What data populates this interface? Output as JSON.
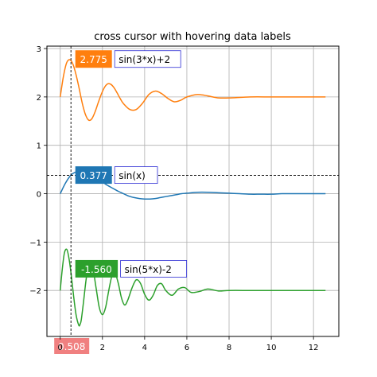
{
  "chart_data": {
    "type": "line",
    "title": "cross cursor with hovering data labels",
    "xlabel": "",
    "ylabel": "",
    "xlim": [
      -0.63,
      13.2
    ],
    "ylim": [
      -2.95,
      3.05
    ],
    "grid": true,
    "xticks": [
      0,
      2,
      4,
      6,
      8,
      10,
      12
    ],
    "yticks": [
      -2,
      -1,
      0,
      1,
      2,
      3
    ],
    "series": [
      {
        "name": "sin(x)",
        "formula": "damped",
        "freq": 1,
        "offset": 0,
        "amp": 1,
        "decay": 0.0,
        "color": "#1f77b4",
        "x": [
          0,
          0.25,
          0.5,
          0.75,
          1.0,
          1.25,
          1.5,
          1.75,
          2.0,
          2.25,
          2.5,
          2.75,
          3.0,
          3.25,
          3.5,
          3.75,
          4.0,
          4.25,
          4.5,
          4.75,
          5.0,
          5.25,
          5.5,
          5.75,
          6.0,
          6.5,
          7.0,
          7.5,
          8.0,
          8.5,
          9.0,
          9.5,
          10.0,
          10.5,
          11.0,
          11.5,
          12.0,
          12.57
        ],
        "y": [
          0,
          0.22,
          0.38,
          0.45,
          0.45,
          0.42,
          0.38,
          0.31,
          0.24,
          0.17,
          0.11,
          0.05,
          0.0,
          -0.05,
          -0.08,
          -0.1,
          -0.11,
          -0.11,
          -0.1,
          -0.08,
          -0.06,
          -0.04,
          -0.02,
          0.0,
          0.01,
          0.03,
          0.03,
          0.02,
          0.01,
          0.0,
          -0.01,
          -0.01,
          -0.01,
          0.0,
          0.0,
          0.0,
          0.0,
          0.0
        ]
      },
      {
        "name": "sin(3*x)+2",
        "color": "#ff7f0e",
        "x": [
          0,
          0.15,
          0.3,
          0.45,
          0.6,
          0.75,
          0.9,
          1.05,
          1.2,
          1.35,
          1.5,
          1.65,
          1.8,
          1.95,
          2.1,
          2.25,
          2.4,
          2.55,
          2.7,
          2.85,
          3.0,
          3.3,
          3.6,
          3.9,
          4.2,
          4.5,
          4.8,
          5.1,
          5.4,
          5.7,
          6.0,
          6.5,
          7.0,
          7.5,
          8.0,
          9.0,
          10.0,
          11.0,
          12.57
        ],
        "y": [
          2.0,
          2.42,
          2.7,
          2.77,
          2.68,
          2.46,
          2.17,
          1.86,
          1.63,
          1.52,
          1.55,
          1.69,
          1.88,
          2.06,
          2.2,
          2.27,
          2.26,
          2.19,
          2.08,
          1.96,
          1.86,
          1.74,
          1.74,
          1.87,
          2.05,
          2.12,
          2.07,
          1.97,
          1.9,
          1.93,
          2.0,
          2.05,
          2.02,
          1.98,
          1.98,
          2.0,
          2.0,
          2.0,
          2.0
        ]
      },
      {
        "name": "sin(5*x)-2",
        "color": "#2ca02c",
        "x": [
          0,
          0.1,
          0.2,
          0.31,
          0.4,
          0.5,
          0.63,
          0.75,
          0.88,
          0.94,
          1.0,
          1.1,
          1.25,
          1.4,
          1.55,
          1.7,
          1.85,
          2.0,
          2.15,
          2.3,
          2.45,
          2.6,
          2.75,
          2.9,
          3.05,
          3.2,
          3.4,
          3.6,
          3.8,
          4.0,
          4.2,
          4.4,
          4.6,
          4.8,
          5.0,
          5.3,
          5.6,
          5.9,
          6.2,
          6.6,
          7.0,
          7.5,
          8.0,
          9.0,
          10.0,
          11.0,
          12.57
        ],
        "y": [
          -2.0,
          -1.55,
          -1.22,
          -1.15,
          -1.3,
          -1.6,
          -2.1,
          -2.5,
          -2.72,
          -2.7,
          -2.6,
          -2.25,
          -1.7,
          -1.42,
          -1.55,
          -1.95,
          -2.35,
          -2.5,
          -2.35,
          -2.0,
          -1.7,
          -1.65,
          -1.85,
          -2.15,
          -2.3,
          -2.2,
          -1.95,
          -1.78,
          -1.85,
          -2.08,
          -2.2,
          -2.1,
          -1.9,
          -1.86,
          -2.0,
          -2.1,
          -1.97,
          -1.94,
          -2.04,
          -2.02,
          -1.97,
          -2.01,
          -2.0,
          -2.0,
          -2.0,
          -2.0,
          -2.0
        ]
      }
    ],
    "cursor": {
      "x": 0.508,
      "y": 0.377,
      "x_label": "0.508",
      "x_label_color": "#f08080"
    },
    "annotations": [
      {
        "series_index": 1,
        "x": 0.508,
        "y": 2.775,
        "value_label": "2.775",
        "name_label": "sin(3*x)+2",
        "color": "#ff7f0e"
      },
      {
        "series_index": 0,
        "x": 0.508,
        "y": 0.377,
        "value_label": "0.377",
        "name_label": "sin(x)",
        "color": "#1f77b4"
      },
      {
        "series_index": 2,
        "x": 0.508,
        "y": -1.56,
        "value_label": "-1.560",
        "name_label": "sin(5*x)-2",
        "color": "#2ca02c"
      }
    ]
  }
}
